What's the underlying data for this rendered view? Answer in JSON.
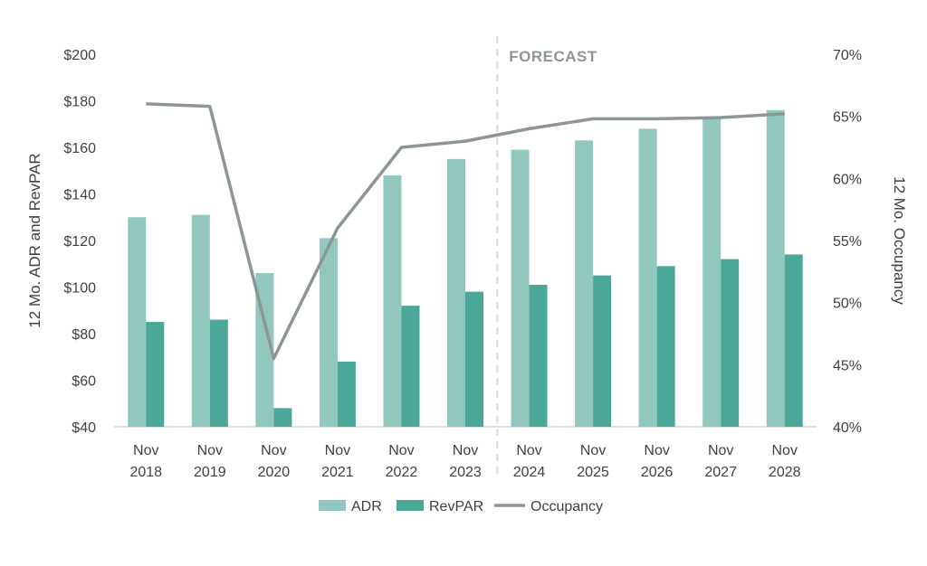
{
  "chart_data": {
    "type": "bar",
    "categories": [
      [
        "Nov",
        "2018"
      ],
      [
        "Nov",
        "2019"
      ],
      [
        "Nov",
        "2020"
      ],
      [
        "Nov",
        "2021"
      ],
      [
        "Nov",
        "2022"
      ],
      [
        "Nov",
        "2023"
      ],
      [
        "Nov",
        "2024"
      ],
      [
        "Nov",
        "2025"
      ],
      [
        "Nov",
        "2026"
      ],
      [
        "Nov",
        "2027"
      ],
      [
        "Nov",
        "2028"
      ]
    ],
    "series": [
      {
        "name": "ADR",
        "type": "bar",
        "axis": "left",
        "color": "#92c7bd",
        "values": [
          130,
          131,
          106,
          121,
          148,
          155,
          159,
          163,
          168,
          173,
          176
        ]
      },
      {
        "name": "RevPAR",
        "type": "bar",
        "axis": "left",
        "color": "#4ba797",
        "values": [
          85,
          86,
          48,
          68,
          92,
          98,
          101,
          105,
          109,
          112,
          114
        ]
      },
      {
        "name": "Occupancy",
        "type": "line",
        "axis": "right",
        "color": "#8c9696",
        "values": [
          66,
          65.8,
          45.5,
          56,
          62.5,
          63,
          64,
          64.8,
          64.8,
          64.9,
          65.2
        ]
      }
    ],
    "y_left": {
      "label": "12 Mo. ADR and RevPAR",
      "range": [
        40,
        200
      ],
      "ticks": [
        40,
        60,
        80,
        100,
        120,
        140,
        160,
        180,
        200
      ],
      "tick_labels": [
        "$40",
        "$60",
        "$80",
        "$100",
        "$120",
        "$140",
        "$160",
        "$180",
        "$200"
      ]
    },
    "y_right": {
      "label": "12 Mo. Occupancy",
      "range": [
        40,
        70
      ],
      "ticks": [
        40,
        45,
        50,
        55,
        60,
        65,
        70
      ],
      "tick_labels": [
        "40%",
        "45%",
        "50%",
        "55%",
        "60%",
        "65%",
        "70%"
      ]
    },
    "forecast_label": "FORECAST",
    "forecast_divider_after_index": 5,
    "grid": false,
    "legend_position": "bottom"
  }
}
